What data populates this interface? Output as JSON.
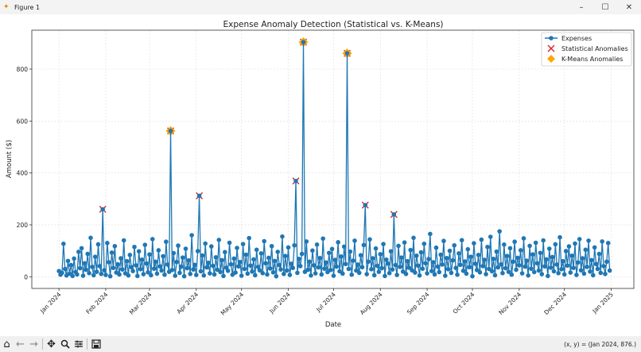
{
  "window": {
    "title": "Figure 1",
    "minimize": "–",
    "maximize": "☐",
    "close": "✕"
  },
  "toolbar": {
    "icons": [
      "home-icon",
      "back-icon",
      "forward-icon",
      "pan-icon",
      "zoom-icon",
      "configure-subplots-icon",
      "save-icon"
    ],
    "coords_readout": "(x, y) = (Jan 2024, 876.)"
  },
  "chart_data": {
    "type": "line",
    "title": "Expense Anomaly Detection (Statistical vs. K-Means)",
    "xlabel": "Date",
    "ylabel": "Amount ($)",
    "xlim": [
      "2023-12-14",
      "2025-01-16"
    ],
    "ylim": [
      -45,
      950
    ],
    "grid": true,
    "legend_position": "top-right",
    "x_ticks": [
      "Jan 2024",
      "Feb 2024",
      "Mar 2024",
      "Apr 2024",
      "May 2024",
      "Jun 2024",
      "Jul 2024",
      "Aug 2024",
      "Sep 2024",
      "Oct 2024",
      "Nov 2024",
      "Dec 2024",
      "Jan 2025"
    ],
    "x_tick_dates": [
      "2024-01-01",
      "2024-02-01",
      "2024-03-01",
      "2024-04-01",
      "2024-05-01",
      "2024-06-01",
      "2024-07-01",
      "2024-08-01",
      "2024-09-01",
      "2024-10-01",
      "2024-11-01",
      "2024-12-01",
      "2025-01-01"
    ],
    "y_ticks": [
      0,
      200,
      400,
      600,
      800
    ],
    "series": [
      {
        "name": "Expenses",
        "style": "line-with-circle-markers",
        "color": "#1f77b4",
        "x_range": [
          "2024-01-01",
          "2024-12-31"
        ],
        "frequency": "daily",
        "values": [
          22,
          8,
          15,
          127,
          30,
          5,
          61,
          12,
          45,
          3,
          70,
          18,
          9,
          96,
          33,
          110,
          4,
          52,
          27,
          88,
          14,
          150,
          38,
          6,
          77,
          19,
          125,
          41,
          11,
          260,
          25,
          7,
          130,
          56,
          2,
          93,
          34,
          118,
          16,
          48,
          9,
          71,
          28,
          140,
          13,
          60,
          5,
          84,
          37,
          22,
          115,
          44,
          3,
          98,
          29,
          66,
          10,
          123,
          51,
          17,
          86,
          6,
          145,
          31,
          58,
          12,
          102,
          40,
          24,
          79,
          8,
          135,
          47,
          19,
          562,
          26,
          91,
          4,
          57,
          120,
          15,
          39,
          74,
          2,
          108,
          33,
          63,
          11,
          160,
          28,
          46,
          7,
          99,
          312,
          21,
          82,
          5,
          128,
          36,
          54,
          13,
          117,
          42,
          9,
          75,
          27,
          142,
          18,
          64,
          3,
          95,
          35,
          23,
          131,
          48,
          8,
          70,
          16,
          111,
          40,
          57,
          4,
          126,
          30,
          85,
          12,
          149,
          43,
          20,
          67,
          6,
          104,
          38,
          25,
          90,
          14,
          137,
          52,
          9,
          73,
          32,
          118,
          17,
          61,
          2,
          96,
          45,
          28,
          155,
          11,
          80,
          24,
          113,
          7,
          50,
          34,
          121,
          369,
          15,
          69,
          41,
          88,
          904,
          19,
          136,
          27,
          58,
          5,
          101,
          44,
          13,
          124,
          36,
          72,
          9,
          147,
          31,
          55,
          18,
          92,
          26,
          107,
          4,
          65,
          39,
          133,
          21,
          78,
          12,
          116,
          49,
          861,
          30,
          97,
          8,
          62,
          139,
          24,
          47,
          15,
          83,
          37,
          122,
          276,
          10,
          58,
          144,
          29,
          71,
          6,
          109,
          42,
          19,
          87,
          33,
          126,
          3,
          66,
          51,
          14,
          98,
          28,
          240,
          45,
          7,
          119,
          38,
          74,
          20,
          132,
          11,
          60,
          35,
          103,
          25,
          150,
          16,
          81,
          43,
          5,
          94,
          31,
          127,
          52,
          13,
          68,
          165,
          22,
          56,
          9,
          112,
          39,
          18,
          85,
          47,
          138,
          4,
          72,
          29,
          100,
          15,
          63,
          121,
          34,
          8,
          90,
          46,
          141,
          23,
          59,
          12,
          106,
          37,
          77,
          2,
          129,
          50,
          26,
          84,
          17,
          143,
          41,
          65,
          10,
          115,
          30,
          154,
          21,
          69,
          6,
          97,
          36,
          175,
          48,
          14,
          124,
          33,
          80,
          19,
          110,
          8,
          58,
          135,
          27,
          73,
          44,
          102,
          13,
          148,
          39,
          62,
          5,
          119,
          31,
          86,
          18,
          131,
          52,
          24,
          92,
          10,
          140,
          40,
          67,
          3,
          108,
          35,
          76,
          21,
          125,
          47,
          14,
          152,
          29,
          60,
          9,
          99,
          43,
          117,
          16,
          81,
          34,
          128,
          7,
          55,
          145,
          25,
          71,
          12,
          104,
          38,
          139,
          20,
          64,
          6,
          113,
          49,
          30,
          88,
          15,
          136,
          41,
          11,
          58,
          130,
          24
        ]
      },
      {
        "name": "Statistical Anomalies",
        "style": "x-markers",
        "color": "#d62728",
        "points": [
          {
            "date": "2024-01-30",
            "value": 260
          },
          {
            "date": "2024-03-15",
            "value": 562
          },
          {
            "date": "2024-04-03",
            "value": 312
          },
          {
            "date": "2024-06-06",
            "value": 369
          },
          {
            "date": "2024-06-11",
            "value": 904
          },
          {
            "date": "2024-07-10",
            "value": 861
          },
          {
            "date": "2024-07-22",
            "value": 276
          },
          {
            "date": "2024-08-10",
            "value": 240
          }
        ]
      },
      {
        "name": "K-Means Anomalies",
        "style": "diamond-markers",
        "color": "#ffa500",
        "points": [
          {
            "date": "2024-03-15",
            "value": 562
          },
          {
            "date": "2024-06-11",
            "value": 904
          },
          {
            "date": "2024-07-10",
            "value": 861
          }
        ]
      }
    ]
  }
}
